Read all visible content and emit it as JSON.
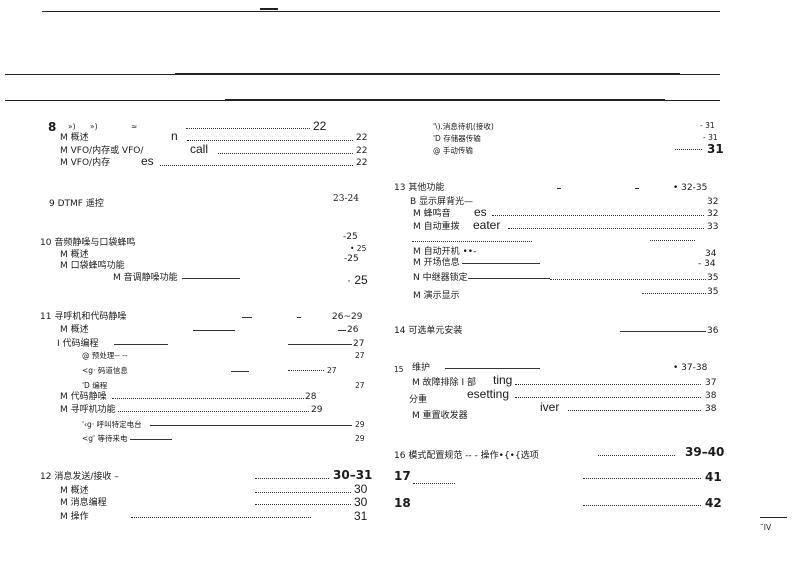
{
  "left": {
    "s8": {
      "num": "8",
      "f1": "»)",
      "f2": "»)",
      "f3": "≈",
      "page": "22"
    },
    "s8a": {
      "label": "M 概述",
      "frag": "n",
      "page": "22"
    },
    "s8b": {
      "label": "M VFO/内存或 VFO/",
      "frag": "call",
      "page": "22"
    },
    "s8c": {
      "label": "M VFO/内存",
      "frag": "es",
      "page": "22"
    },
    "s9": {
      "label": "9 DTMF 遥控",
      "page": "23-24"
    },
    "s10": {
      "label": "10 音频静噪与口袋蜂鸣",
      "page": "-25"
    },
    "s10a": {
      "label": "M 概述",
      "page": "• 25"
    },
    "s10b": {
      "label": "M 口袋蜂鸣功能",
      "page": "-25"
    },
    "s10c": {
      "label": "M 音调静噪功能",
      "page": "· 25"
    },
    "s11": {
      "label": "11 寻呼机和代码静噪",
      "page": "26~29"
    },
    "s11a": {
      "label": "M 概述",
      "page": "26"
    },
    "s11b": {
      "label": "I   代码编程",
      "page": "27"
    },
    "s11b1": {
      "label": "@ 预处理-- --",
      "page": "27"
    },
    "s11b2": {
      "label": "<g· 码道信息",
      "page": "27"
    },
    "s11b3": {
      "label": "'D 编程",
      "page": "27"
    },
    "s11c": {
      "label": "M 代码静噪",
      "page": "28"
    },
    "s11d": {
      "label": "M 寻呼机功能",
      "page": "29"
    },
    "s11d1": {
      "label": "'‹g· 呼叫特定电台",
      "page": "29"
    },
    "s11d2": {
      "label": "<g' 等待来电",
      "page": "29"
    },
    "s12": {
      "label": "12 消息发送/接收 –",
      "page": "30–31"
    },
    "s12a": {
      "label": "M 概述",
      "page": "30"
    },
    "s12b": {
      "label": "M 消息编程",
      "page": "30"
    },
    "s12c": {
      "label": "M 操作",
      "page": "31"
    }
  },
  "right": {
    "s12d": {
      "label": "'\\).消息待机(接收)",
      "page": "- 31"
    },
    "s12e": {
      "label": "'D 存储器传输",
      "page": "- 31"
    },
    "s12f": {
      "label": "@ 手动传输",
      "page": "31"
    },
    "s13": {
      "label": "13 其他功能",
      "page": "• 32-35"
    },
    "s13a": {
      "label": "B 显示屏背光—",
      "page": "32"
    },
    "s13b": {
      "label": "M 蜂鸣音",
      "frag": "es",
      "page": "32"
    },
    "s13c": {
      "label": "M 自动重拨",
      "frag": "eater",
      "page": "33"
    },
    "s13d": {
      "label": "M 自动开机 ••-",
      "page": "34"
    },
    "s13e": {
      "label": "M 开场信息",
      "page": "- 34"
    },
    "s13f": {
      "label": "N 中继器锁定",
      "page": "35"
    },
    "s13g": {
      "label": "M 演示显示",
      "page": "35"
    },
    "s14": {
      "label": "14 可选单元安装",
      "page": "36"
    },
    "s15": {
      "num": "15",
      "label": "维护",
      "page": "• 37-38"
    },
    "s15a": {
      "label": "M 故障排除 I   部",
      "frag": "ting",
      "page": "37"
    },
    "s15b": {
      "label": "分重",
      "frag": "esetting",
      "page": "38"
    },
    "s15c": {
      "label": "M 重置收发器",
      "frag": "iver",
      "page": "38"
    },
    "s16": {
      "label": "16 模式配置规范 -- - 操作•{•{选项",
      "page": "39–40"
    },
    "s17": {
      "num": "17",
      "page": "41"
    },
    "s18": {
      "num": "18",
      "page": "42"
    }
  },
  "footer": {
    "page_mark": "˜IV"
  }
}
